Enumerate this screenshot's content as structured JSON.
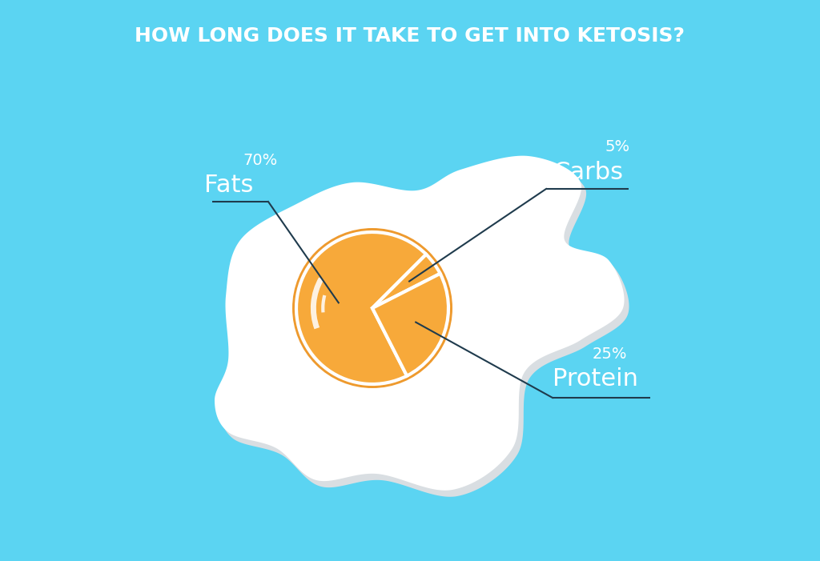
{
  "chart_data": {
    "type": "pie",
    "title": "HOW LONG DOES IT TAKE TO GET INTO KETOSIS?",
    "categories": [
      "Fats",
      "Carbs",
      "Protein"
    ],
    "values": [
      70,
      5,
      25
    ],
    "value_labels": [
      "70%",
      "5%",
      "25%"
    ],
    "data_labels": true,
    "color": "#F7A93A"
  }
}
